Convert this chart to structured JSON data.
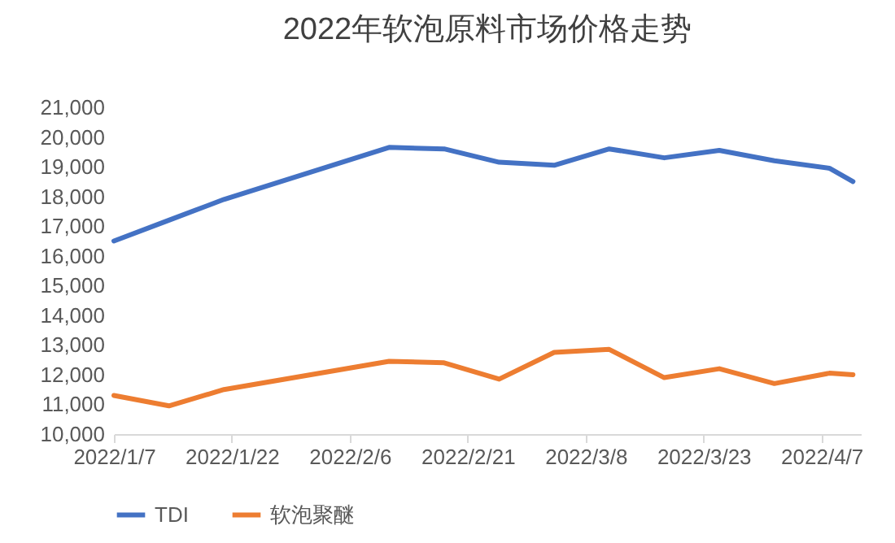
{
  "chart_data": {
    "type": "line",
    "title": "2022年软泡原料市场价格走势",
    "x": [
      "2022-01-07",
      "2022-01-14",
      "2022-01-21",
      "2022-02-11",
      "2022-02-18",
      "2022-02-25",
      "2022-03-04",
      "2022-03-11",
      "2022-03-18",
      "2022-03-25",
      "2022-04-01",
      "2022-04-08",
      "2022-04-11"
    ],
    "series": [
      {
        "name": "TDI",
        "color": "#4472c4",
        "values": [
          16500,
          17200,
          17900,
          19650,
          19600,
          19150,
          19050,
          19600,
          19300,
          19550,
          19200,
          18950,
          18500
        ]
      },
      {
        "name": "软泡聚醚",
        "color": "#ed7d31",
        "values": [
          11300,
          10950,
          11500,
          12450,
          12400,
          11850,
          12750,
          12850,
          11900,
          12200,
          11700,
          12050,
          12000
        ]
      }
    ],
    "xlim": [
      "2022-01-07",
      "2022-04-12"
    ],
    "xticks": [
      {
        "value": "2022-01-07",
        "label": "2022/1/7"
      },
      {
        "value": "2022-01-22",
        "label": "2022/1/22"
      },
      {
        "value": "2022-02-06",
        "label": "2022/2/6"
      },
      {
        "value": "2022-02-21",
        "label": "2022/2/21"
      },
      {
        "value": "2022-03-08",
        "label": "2022/3/8"
      },
      {
        "value": "2022-03-23",
        "label": "2022/3/23"
      },
      {
        "value": "2022-04-07",
        "label": "2022/4/7"
      }
    ],
    "ylim": [
      10000,
      21000
    ],
    "yticks": [
      {
        "value": 10000,
        "label": "10,000"
      },
      {
        "value": 11000,
        "label": "11,000"
      },
      {
        "value": 12000,
        "label": "12,000"
      },
      {
        "value": 13000,
        "label": "13,000"
      },
      {
        "value": 14000,
        "label": "14,000"
      },
      {
        "value": 15000,
        "label": "15,000"
      },
      {
        "value": 16000,
        "label": "16,000"
      },
      {
        "value": 17000,
        "label": "17,000"
      },
      {
        "value": 18000,
        "label": "18,000"
      },
      {
        "value": 19000,
        "label": "19,000"
      },
      {
        "value": 20000,
        "label": "20,000"
      },
      {
        "value": 21000,
        "label": "21,000"
      }
    ],
    "legend": "bottom",
    "marker": "none",
    "line_style": "solid"
  }
}
